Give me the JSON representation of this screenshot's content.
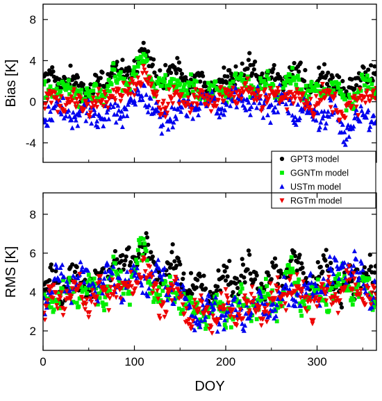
{
  "chart_data": [
    {
      "type": "scatter",
      "ylabel": "Bias [K]",
      "xlim": [
        0,
        365
      ],
      "ylim": [
        -5.9,
        9.5
      ],
      "xticks": [
        0,
        100,
        200,
        300
      ],
      "yticks": [
        -4,
        0,
        4,
        8
      ],
      "ytick_labels": [
        "-4",
        "0",
        "4",
        "8"
      ],
      "series": [
        {
          "name": "GPT3 model",
          "color": "#000000",
          "marker": "circle",
          "anchors_x": [
            0,
            10,
            25,
            40,
            55,
            70,
            77,
            85,
            95,
            105,
            110,
            120,
            130,
            145,
            160,
            175,
            190,
            200,
            215,
            230,
            245,
            260,
            270,
            280,
            290,
            300,
            310,
            320,
            330,
            340,
            350,
            360,
            365
          ],
          "anchors_y": [
            1.5,
            2.5,
            2.0,
            1.5,
            1.2,
            2.0,
            3.8,
            2.5,
            3.0,
            4.5,
            5.0,
            3.0,
            2.5,
            3.0,
            1.8,
            1.8,
            1.5,
            2.3,
            3.0,
            2.8,
            2.5,
            2.0,
            3.0,
            2.5,
            2.0,
            1.8,
            2.3,
            2.5,
            0.5,
            1.5,
            3.0,
            2.0,
            2.0
          ],
          "spread": 1.1
        },
        {
          "name": "GGNTm model",
          "color": "#00ee00",
          "marker": "square",
          "anchors_x": [
            0,
            10,
            25,
            40,
            55,
            70,
            77,
            85,
            95,
            105,
            110,
            120,
            130,
            145,
            160,
            175,
            190,
            200,
            215,
            230,
            245,
            260,
            270,
            280,
            290,
            300,
            310,
            320,
            330,
            340,
            350,
            360,
            365
          ],
          "anchors_y": [
            0.8,
            1.5,
            1.2,
            0.8,
            0.5,
            1.2,
            2.8,
            1.6,
            2.0,
            3.5,
            4.2,
            2.0,
            1.5,
            2.0,
            1.0,
            1.0,
            0.8,
            1.2,
            1.8,
            1.5,
            1.3,
            1.0,
            2.0,
            1.5,
            1.0,
            0.8,
            1.2,
            1.5,
            -0.5,
            0.5,
            2.0,
            1.0,
            1.0
          ],
          "spread": 1.0
        },
        {
          "name": "USTm model",
          "color": "#0000ee",
          "marker": "triangle-up",
          "anchors_x": [
            0,
            10,
            25,
            40,
            55,
            70,
            77,
            85,
            95,
            105,
            110,
            120,
            130,
            145,
            160,
            175,
            190,
            200,
            215,
            230,
            245,
            260,
            270,
            280,
            290,
            300,
            310,
            320,
            330,
            340,
            350,
            360,
            365
          ],
          "anchors_y": [
            -1.2,
            -1.0,
            -0.8,
            -1.2,
            -1.0,
            -1.5,
            -0.5,
            -1.0,
            -0.5,
            0.5,
            1.5,
            -1.0,
            -2.0,
            -1.0,
            -0.6,
            0.0,
            -0.3,
            0.0,
            0.5,
            0.2,
            -0.2,
            0.0,
            -0.5,
            -1.0,
            -1.0,
            -1.0,
            -1.5,
            -1.0,
            -3.0,
            -2.0,
            -1.0,
            -1.5,
            -1.5
          ],
          "spread": 1.3
        },
        {
          "name": "RGTm model",
          "color": "#ee0000",
          "marker": "triangle-down",
          "anchors_x": [
            0,
            10,
            25,
            40,
            55,
            70,
            77,
            85,
            95,
            105,
            110,
            120,
            130,
            145,
            160,
            175,
            190,
            200,
            215,
            230,
            245,
            260,
            270,
            280,
            290,
            300,
            310,
            320,
            330,
            340,
            350,
            360,
            365
          ],
          "anchors_y": [
            0.0,
            0.3,
            0.0,
            -0.3,
            -0.3,
            0.0,
            1.5,
            0.3,
            1.0,
            2.5,
            3.0,
            0.5,
            -0.5,
            0.5,
            0.0,
            0.3,
            0.2,
            0.5,
            1.0,
            0.8,
            0.5,
            0.3,
            1.0,
            0.3,
            0.0,
            0.0,
            0.3,
            0.3,
            -1.5,
            -0.5,
            1.0,
            0.0,
            0.0
          ],
          "spread": 1.0
        }
      ],
      "legend": {
        "placement": "bottom-right",
        "entries": [
          "GPT3 model",
          "GGNTm model",
          "USTm model",
          "RGTm model"
        ]
      }
    },
    {
      "type": "scatter",
      "ylabel": "RMS [K]",
      "xlabel": "DOY",
      "xlim": [
        0,
        365
      ],
      "ylim": [
        1.0,
        9.1
      ],
      "xticks": [
        0,
        100,
        200,
        300
      ],
      "yticks": [
        2,
        4,
        6,
        8
      ],
      "ytick_labels": [
        "2",
        "4",
        "6",
        "8"
      ],
      "series": [
        {
          "name": "GPT3 model",
          "color": "#000000",
          "marker": "circle",
          "anchors_x": [
            0,
            10,
            25,
            40,
            55,
            70,
            77,
            85,
            95,
            105,
            110,
            120,
            130,
            145,
            160,
            175,
            190,
            200,
            215,
            230,
            245,
            260,
            270,
            280,
            290,
            300,
            310,
            320,
            330,
            340,
            350,
            360,
            365
          ],
          "anchors_y": [
            3.6,
            4.6,
            4.4,
            4.6,
            4.5,
            4.6,
            5.8,
            5.0,
            5.6,
            6.5,
            6.8,
            5.2,
            5.0,
            5.2,
            4.4,
            4.2,
            4.4,
            4.6,
            4.8,
            4.8,
            4.7,
            4.8,
            5.8,
            5.0,
            4.6,
            4.8,
            5.0,
            5.0,
            4.0,
            4.5,
            5.4,
            4.5,
            4.5
          ],
          "spread": 0.7
        },
        {
          "name": "GGNTm model",
          "color": "#00ee00",
          "marker": "square",
          "anchors_x": [
            0,
            10,
            25,
            40,
            55,
            70,
            77,
            85,
            95,
            105,
            110,
            120,
            130,
            145,
            160,
            175,
            190,
            200,
            215,
            230,
            245,
            260,
            270,
            280,
            290,
            300,
            310,
            320,
            330,
            340,
            350,
            360,
            365
          ],
          "anchors_y": [
            3.2,
            3.8,
            3.8,
            4.0,
            4.0,
            4.0,
            5.0,
            4.2,
            4.6,
            5.6,
            6.0,
            4.3,
            3.8,
            4.2,
            3.0,
            2.9,
            3.0,
            3.1,
            3.3,
            3.4,
            3.5,
            3.8,
            5.0,
            4.0,
            3.8,
            3.8,
            4.0,
            4.2,
            4.4,
            4.2,
            4.4,
            3.6,
            3.6
          ],
          "spread": 0.6
        },
        {
          "name": "USTm model",
          "color": "#0000ee",
          "marker": "triangle-up",
          "anchors_x": [
            0,
            10,
            25,
            40,
            55,
            70,
            77,
            85,
            95,
            105,
            110,
            120,
            130,
            145,
            160,
            175,
            190,
            200,
            215,
            230,
            245,
            260,
            270,
            280,
            290,
            300,
            310,
            320,
            330,
            340,
            350,
            360,
            365
          ],
          "anchors_y": [
            3.6,
            4.4,
            4.6,
            4.6,
            4.4,
            4.6,
            4.6,
            4.6,
            4.5,
            4.8,
            5.0,
            4.6,
            4.6,
            4.2,
            3.0,
            2.9,
            3.0,
            3.0,
            3.0,
            3.1,
            3.3,
            3.4,
            4.0,
            4.0,
            4.0,
            4.2,
            4.6,
            5.0,
            5.8,
            5.0,
            4.6,
            4.2,
            4.2
          ],
          "spread": 0.6
        },
        {
          "name": "RGTm model",
          "color": "#ee0000",
          "marker": "triangle-down",
          "anchors_x": [
            0,
            10,
            25,
            40,
            55,
            70,
            77,
            85,
            95,
            105,
            110,
            120,
            130,
            145,
            160,
            175,
            190,
            200,
            215,
            230,
            245,
            260,
            270,
            280,
            290,
            300,
            310,
            320,
            330,
            340,
            350,
            360,
            365
          ],
          "anchors_y": [
            3.0,
            3.6,
            3.8,
            3.8,
            3.8,
            3.8,
            4.6,
            3.8,
            4.2,
            5.2,
            5.6,
            4.0,
            3.6,
            4.0,
            2.9,
            2.8,
            2.9,
            3.0,
            3.1,
            3.2,
            3.4,
            3.6,
            4.6,
            3.8,
            3.6,
            3.6,
            3.8,
            4.0,
            4.4,
            4.0,
            4.2,
            3.6,
            3.6
          ],
          "spread": 0.6
        }
      ]
    }
  ],
  "colors": {
    "axis": "#000000",
    "background": "#ffffff"
  }
}
